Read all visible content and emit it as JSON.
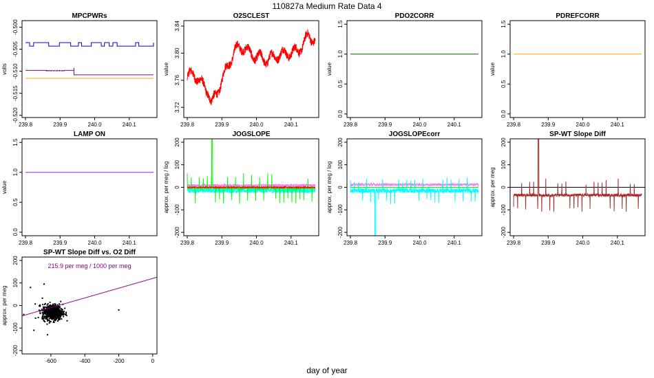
{
  "figure": {
    "title": "110827a   Medium Rate Data 4",
    "xlabel": "day of year"
  },
  "chart_data": [
    {
      "id": "mpcpwrs",
      "type": "line",
      "title": "MPCPWRs",
      "ylabel": "volts",
      "xlim": [
        239.79,
        240.18
      ],
      "ylim": [
        -0.5205,
        -0.4985
      ],
      "xticks": [
        "239.8",
        "239.9",
        "240.0",
        "240.1"
      ],
      "xtick_values": [
        239.8,
        239.9,
        240.0,
        240.1
      ],
      "yticks": [
        "-0.500",
        "-0.505",
        "-0.510",
        "-0.515",
        "-0.520"
      ],
      "ytick_values": [
        -0.5,
        -0.505,
        -0.51,
        -0.515,
        -0.52
      ],
      "series": [
        {
          "color": "#0000cc",
          "pattern": "square",
          "base": -0.5043,
          "high": -0.5035,
          "x": [
            239.8,
            240.17
          ]
        },
        {
          "color": "#800080",
          "pattern": "square_short",
          "base": -0.5108,
          "high": -0.5098,
          "x": [
            239.8,
            240.17
          ]
        },
        {
          "color": "#ffa500",
          "pattern": "flat",
          "base": -0.5116,
          "x": [
            239.8,
            240.17
          ]
        }
      ]
    },
    {
      "id": "o2sclest",
      "type": "line",
      "title": "O2SCLEST",
      "ylabel": "value",
      "xlim": [
        239.79,
        240.18
      ],
      "ylim": [
        3.705,
        3.848
      ],
      "xticks": [
        "239.8",
        "239.9",
        "240.0",
        "240.1"
      ],
      "xtick_values": [
        239.8,
        239.9,
        240.0,
        240.1
      ],
      "yticks": [
        "3.72",
        "3.76",
        "3.80",
        "3.84"
      ],
      "ytick_values": [
        3.72,
        3.76,
        3.8,
        3.84
      ],
      "series": [
        {
          "color": "#ff0000",
          "pattern": "envelope",
          "x": [
            239.8,
            239.82,
            239.84,
            239.86,
            239.87,
            239.88,
            239.9,
            239.92,
            239.94,
            239.96,
            239.98,
            240.0,
            240.03,
            240.06,
            240.09,
            240.12,
            240.15,
            240.17
          ],
          "values": [
            3.765,
            3.77,
            3.755,
            3.745,
            3.725,
            3.735,
            3.76,
            3.785,
            3.805,
            3.81,
            3.8,
            3.795,
            3.79,
            3.797,
            3.8,
            3.803,
            3.825,
            3.82
          ],
          "amplitude": 0.012
        }
      ]
    },
    {
      "id": "pdo2corr",
      "type": "line",
      "title": "PDO2CORR",
      "ylabel": "value",
      "xlim": [
        239.79,
        240.18
      ],
      "ylim": [
        -0.06,
        1.56
      ],
      "xticks": [
        "239.8",
        "239.9",
        "240.0",
        "240.1"
      ],
      "xtick_values": [
        239.8,
        239.9,
        240.0,
        240.1
      ],
      "yticks": [
        "0.0",
        "0.5",
        "1.0",
        "1.5"
      ],
      "ytick_values": [
        0,
        0.5,
        1.0,
        1.5
      ],
      "series": [
        {
          "color": "#006400",
          "pattern": "flat",
          "base": 1.0,
          "x": [
            239.8,
            240.17
          ]
        }
      ]
    },
    {
      "id": "pdrefcorr",
      "type": "line",
      "title": "PDREFCORR",
      "ylabel": "value",
      "xlim": [
        239.79,
        240.18
      ],
      "ylim": [
        -0.06,
        1.56
      ],
      "xticks": [
        "239.8",
        "239.9",
        "240.0",
        "240.1"
      ],
      "xtick_values": [
        239.8,
        239.9,
        240.0,
        240.1
      ],
      "yticks": [
        "0.0",
        "0.5",
        "1.0",
        "1.5"
      ],
      "ytick_values": [
        0,
        0.5,
        1.0,
        1.5
      ],
      "series": [
        {
          "color": "#ffa500",
          "pattern": "flat",
          "base": 1.0,
          "x": [
            239.8,
            240.17
          ]
        }
      ]
    },
    {
      "id": "lampon",
      "type": "line",
      "title": "LAMP ON",
      "ylabel": "value",
      "xlim": [
        239.79,
        240.18
      ],
      "ylim": [
        -0.06,
        1.56
      ],
      "xticks": [
        "239.8",
        "239.9",
        "240.0",
        "240.1"
      ],
      "xtick_values": [
        239.8,
        239.9,
        240.0,
        240.1
      ],
      "yticks": [
        "0.0",
        "0.5",
        "1.0",
        "1.5"
      ],
      "ytick_values": [
        0,
        0.5,
        1.0,
        1.5
      ],
      "series": [
        {
          "color": "#a020f0",
          "pattern": "flat",
          "base": 1.0,
          "x": [
            239.8,
            240.17
          ]
        }
      ]
    },
    {
      "id": "jogslope",
      "type": "line",
      "title": "JOGSLOPE",
      "ylabel": "approx. per meg / log",
      "xlim": [
        239.79,
        240.18
      ],
      "ylim": [
        -215,
        215
      ],
      "xticks": [
        "239.8",
        "239.9",
        "240.0",
        "240.1"
      ],
      "xtick_values": [
        239.8,
        239.9,
        240.0,
        240.1
      ],
      "yticks": [
        "-200",
        "-100",
        "0",
        "100",
        "200"
      ],
      "ytick_values": [
        -200,
        -100,
        0,
        100,
        200
      ],
      "series": [
        {
          "color": "#00ffff",
          "pattern": "noise",
          "base": -15,
          "amplitude": 10,
          "x": [
            239.8,
            240.17
          ]
        },
        {
          "color": "#ee82ee",
          "pattern": "noise",
          "base": 8,
          "amplitude": 6,
          "x": [
            239.8,
            240.17
          ]
        },
        {
          "color": "#00ff00",
          "pattern": "spiky",
          "base": -5,
          "amplitude": 4,
          "spike": 70,
          "x": [
            239.8,
            240.17
          ]
        },
        {
          "color": "#ff0000",
          "pattern": "noise",
          "base": 0,
          "amplitude": 2,
          "x": [
            239.8,
            240.17
          ]
        }
      ]
    },
    {
      "id": "jogslopecorr",
      "type": "line",
      "title": "JOGSLOPEcorr",
      "ylabel": "approx. per meg / log",
      "xlim": [
        239.79,
        240.18
      ],
      "ylim": [
        -215,
        215
      ],
      "xticks": [
        "239.8",
        "239.9",
        "240.0",
        "240.1"
      ],
      "xtick_values": [
        239.8,
        239.9,
        240.0,
        240.1
      ],
      "yticks": [
        "-200",
        "-100",
        "0",
        "100",
        "200"
      ],
      "ytick_values": [
        -200,
        -100,
        0,
        100,
        200
      ],
      "series": [
        {
          "color": "#ee82ee",
          "pattern": "noise",
          "base": 12,
          "amplitude": 6,
          "x": [
            239.8,
            240.17
          ]
        },
        {
          "color": "#00ffff",
          "pattern": "spiky",
          "base": -15,
          "amplitude": 10,
          "spike": 60,
          "x": [
            239.8,
            240.17
          ]
        },
        {
          "color": "#00ff00",
          "pattern": "flat",
          "base": 0,
          "x": [
            239.8,
            240.17
          ]
        }
      ]
    },
    {
      "id": "spwtslopediff",
      "type": "line",
      "title": "SP-WT Slope Diff",
      "ylabel": "approx. per meg",
      "xlim": [
        239.79,
        240.18
      ],
      "ylim": [
        -215,
        215
      ],
      "xticks": [
        "239.8",
        "239.9",
        "240.0",
        "240.1"
      ],
      "xtick_values": [
        239.8,
        239.9,
        240.0,
        240.1
      ],
      "yticks": [
        "-200",
        "-100",
        "0",
        "100",
        "200"
      ],
      "ytick_values": [
        -200,
        -100,
        0,
        100,
        200
      ],
      "hline": 0,
      "series": [
        {
          "color": "#a52a2a",
          "pattern": "spiky",
          "base": -35,
          "amplitude": 6,
          "spike": 75,
          "x": [
            239.8,
            240.17
          ]
        }
      ]
    },
    {
      "id": "scatter",
      "type": "scatter",
      "title": "SP-WT Slope Diff vs. O2 Diff",
      "ylabel": "approx. per meg",
      "xlim": [
        -770,
        25
      ],
      "ylim": [
        -215,
        215
      ],
      "xticks": [
        "-600",
        "-400",
        "-200",
        "0"
      ],
      "xtick_values": [
        -600,
        -400,
        -200,
        0
      ],
      "yticks": [
        "-200",
        "-100",
        "0",
        "100",
        "200"
      ],
      "ytick_values": [
        -200,
        -100,
        0,
        100,
        200
      ],
      "annotation": "215.9 per meg / 1000 per meg",
      "annotation_color": "#8b008b",
      "fit": {
        "slope": 0.2159,
        "intercept": 120,
        "color": "#8b008b"
      },
      "cluster": {
        "center_x": -590,
        "center_y": -30,
        "spread_x": 55,
        "spread_y": 25,
        "n": 600,
        "color": "#000000"
      },
      "outliers": [
        [
          -200,
          -20
        ],
        [
          -720,
          80
        ],
        [
          -760,
          -40
        ],
        [
          -640,
          95
        ],
        [
          -700,
          -110
        ],
        [
          -620,
          -130
        ]
      ]
    }
  ]
}
